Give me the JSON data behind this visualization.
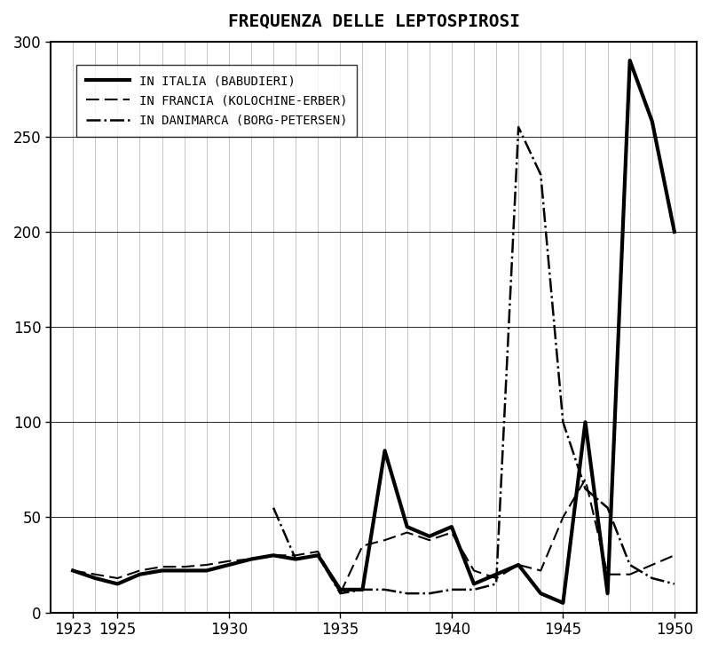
{
  "title": "FREQUENZA DELLE LEPTOSPIROSI",
  "ylim": [
    0,
    300
  ],
  "yticks": [
    0,
    50,
    100,
    150,
    200,
    250,
    300
  ],
  "xtick_positions": [
    1923,
    1925,
    1930,
    1935,
    1940,
    1945,
    1950
  ],
  "xlim": [
    1922,
    1951
  ],
  "italia": {
    "label": "IN ITALIA (BABUDIERI)",
    "years": [
      1923,
      1924,
      1925,
      1926,
      1927,
      1928,
      1929,
      1930,
      1931,
      1932,
      1933,
      1934,
      1935,
      1936,
      1937,
      1938,
      1939,
      1940,
      1941,
      1942,
      1943,
      1944,
      1945,
      1946,
      1947,
      1948,
      1949,
      1950
    ],
    "values": [
      22,
      18,
      15,
      20,
      22,
      22,
      22,
      25,
      28,
      30,
      28,
      30,
      12,
      12,
      85,
      45,
      40,
      45,
      15,
      20,
      25,
      10,
      5,
      100,
      10,
      290,
      258,
      200
    ]
  },
  "francia": {
    "label": "IN FRANCIA (KOLOCHINE-ERBER)",
    "years": [
      1923,
      1924,
      1925,
      1926,
      1927,
      1928,
      1929,
      1930,
      1931,
      1932,
      1933,
      1934,
      1935,
      1936,
      1937,
      1938,
      1939,
      1940,
      1941,
      1942,
      1943,
      1944,
      1945,
      1946,
      1947,
      1948,
      1949,
      1950
    ],
    "values": [
      22,
      20,
      18,
      22,
      24,
      24,
      25,
      27,
      28,
      30,
      30,
      32,
      10,
      35,
      38,
      42,
      38,
      42,
      22,
      18,
      25,
      22,
      50,
      70,
      20,
      20,
      25,
      30
    ]
  },
  "danimarca": {
    "label": "IN DANIMARCA (BORG-PETERSEN)",
    "years": [
      1932,
      1933,
      1934,
      1935,
      1936,
      1937,
      1938,
      1939,
      1940,
      1941,
      1942,
      1943,
      1944,
      1945,
      1946,
      1947,
      1948,
      1949,
      1950
    ],
    "values": [
      55,
      28,
      30,
      10,
      12,
      12,
      10,
      10,
      12,
      12,
      15,
      255,
      230,
      100,
      65,
      55,
      25,
      18,
      15
    ]
  }
}
